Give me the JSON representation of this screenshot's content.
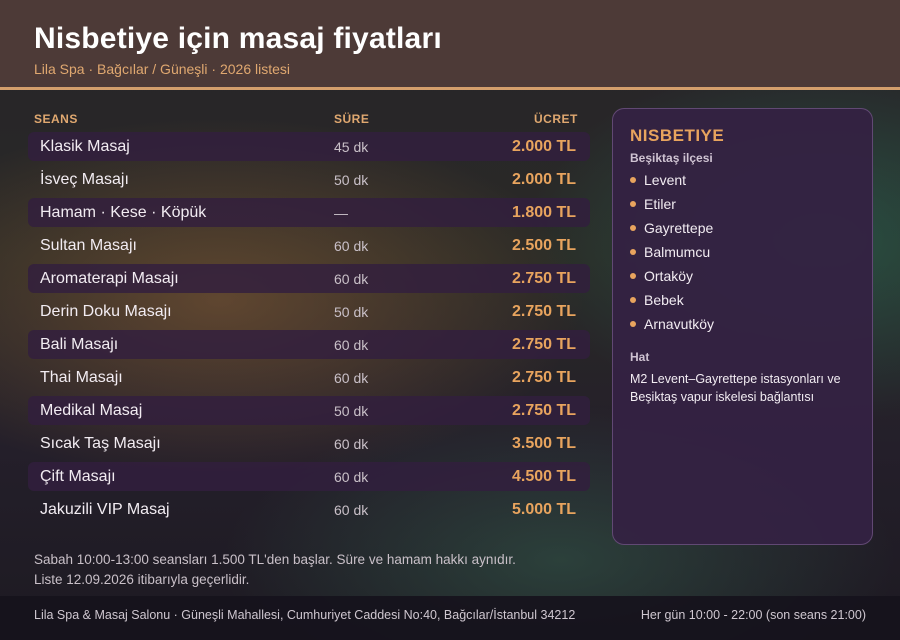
{
  "header": {
    "title": "Nisbetiye için masaj fiyatları",
    "subtitle": "Lila Spa · Bağcılar / Güneşli · 2026 listesi"
  },
  "table": {
    "columns": {
      "session": "SEANS",
      "duration": "SÜRE",
      "price": "ÜCRET"
    },
    "rows": [
      {
        "name": "Klasik Masaj",
        "duration": "45 dk",
        "price": "2.000 TL"
      },
      {
        "name": "İsveç Masajı",
        "duration": "50 dk",
        "price": "2.000 TL"
      },
      {
        "name": "Hamam · Kese · Köpük",
        "duration": "—",
        "price": "1.800 TL"
      },
      {
        "name": "Sultan Masajı",
        "duration": "60 dk",
        "price": "2.500 TL"
      },
      {
        "name": "Aromaterapi Masajı",
        "duration": "60 dk",
        "price": "2.750 TL"
      },
      {
        "name": "Derin Doku Masajı",
        "duration": "50 dk",
        "price": "2.750 TL"
      },
      {
        "name": "Bali Masajı",
        "duration": "60 dk",
        "price": "2.750 TL"
      },
      {
        "name": "Thai Masajı",
        "duration": "60 dk",
        "price": "2.750 TL"
      },
      {
        "name": "Medikal Masaj",
        "duration": "50 dk",
        "price": "2.750 TL"
      },
      {
        "name": "Sıcak Taş Masajı",
        "duration": "60 dk",
        "price": "3.500 TL"
      },
      {
        "name": "Çift Masajı",
        "duration": "60 dk",
        "price": "4.500 TL"
      },
      {
        "name": "Jakuzili VIP Masaj",
        "duration": "60 dk",
        "price": "5.000 TL"
      }
    ]
  },
  "side": {
    "title": "NISBETIYE",
    "district": "Beşiktaş ilçesi",
    "places": [
      "Levent",
      "Etiler",
      "Gayrettepe",
      "Balmumcu",
      "Ortaköy",
      "Bebek",
      "Arnavutköy"
    ],
    "hat_label": "Hat",
    "hat_text": "M2 Levent–Gayrettepe istasyonları ve Beşiktaş vapur iskelesi bağlantısı"
  },
  "notes": {
    "line1": "Sabah 10:00-13:00 seansları 1.500 TL'den başlar. Süre ve hamam hakkı aynıdır.",
    "line2": "Liste 12.09.2026 itibarıyla geçerlidir."
  },
  "footer": {
    "address": "Lila Spa & Masaj Salonu · Güneşli Mahallesi, Cumhuriyet Caddesi No:40, Bağcılar/İstanbul 34212",
    "hours": "Her gün 10:00 - 22:00 (son seans 21:00)"
  },
  "colors": {
    "accent": "#e8a45e",
    "header_bg": "#4d3a37",
    "panel_bg": "#342242",
    "row_shade": "#321e3e"
  }
}
